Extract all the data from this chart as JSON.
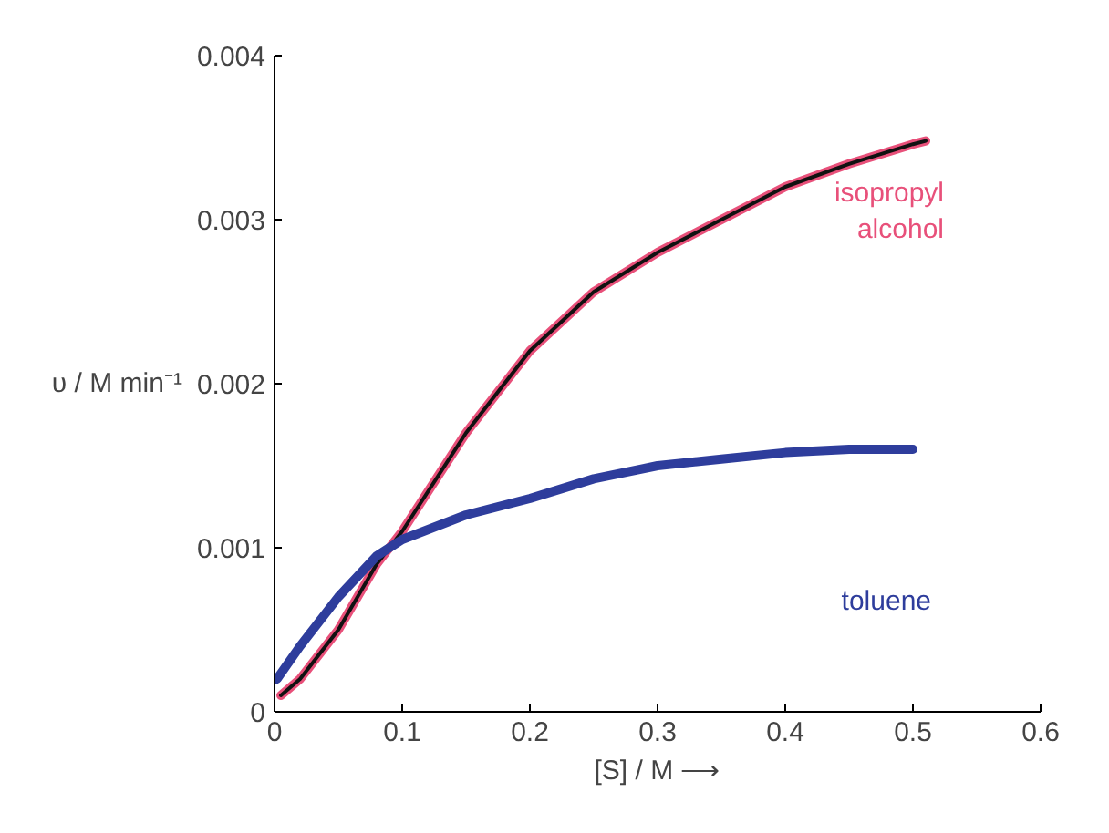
{
  "chart_data": {
    "type": "line",
    "xlabel": "[S] / M ⟶",
    "ylabel": "υ / M min⁻¹",
    "xlim": [
      0,
      0.6
    ],
    "ylim": [
      0,
      0.004
    ],
    "xticks": [
      0,
      0.1,
      0.2,
      0.3,
      0.4,
      0.5,
      0.6
    ],
    "yticks": [
      0,
      0.001,
      0.002,
      0.003,
      0.004
    ],
    "grid": false,
    "series": [
      {
        "name": "isopropyl alcohol",
        "color": "#e8507a",
        "x": [
          0.005,
          0.02,
          0.05,
          0.08,
          0.1,
          0.15,
          0.2,
          0.25,
          0.3,
          0.35,
          0.4,
          0.45,
          0.5,
          0.51
        ],
        "values": [
          0.0001,
          0.0002,
          0.0005,
          0.0009,
          0.0011,
          0.0017,
          0.0022,
          0.00256,
          0.0028,
          0.003,
          0.0032,
          0.00334,
          0.00346,
          0.00348
        ]
      },
      {
        "color": "#111111",
        "x": [
          0.005,
          0.02,
          0.05,
          0.08,
          0.1,
          0.15,
          0.2,
          0.25,
          0.3,
          0.35,
          0.4,
          0.45,
          0.5,
          0.51
        ],
        "values": [
          0.0001,
          0.0002,
          0.0005,
          0.0009,
          0.0011,
          0.0017,
          0.0022,
          0.00256,
          0.0028,
          0.003,
          0.0032,
          0.00334,
          0.00346,
          0.00348
        ]
      },
      {
        "name": "toluene",
        "color": "#2e3d9c",
        "x": [
          0.002,
          0.02,
          0.05,
          0.08,
          0.1,
          0.15,
          0.2,
          0.25,
          0.3,
          0.35,
          0.4,
          0.45,
          0.5
        ],
        "values": [
          0.0002,
          0.0004,
          0.0007,
          0.00095,
          0.00105,
          0.0012,
          0.0013,
          0.00142,
          0.0015,
          0.00154,
          0.00158,
          0.0016,
          0.0016
        ]
      }
    ]
  }
}
